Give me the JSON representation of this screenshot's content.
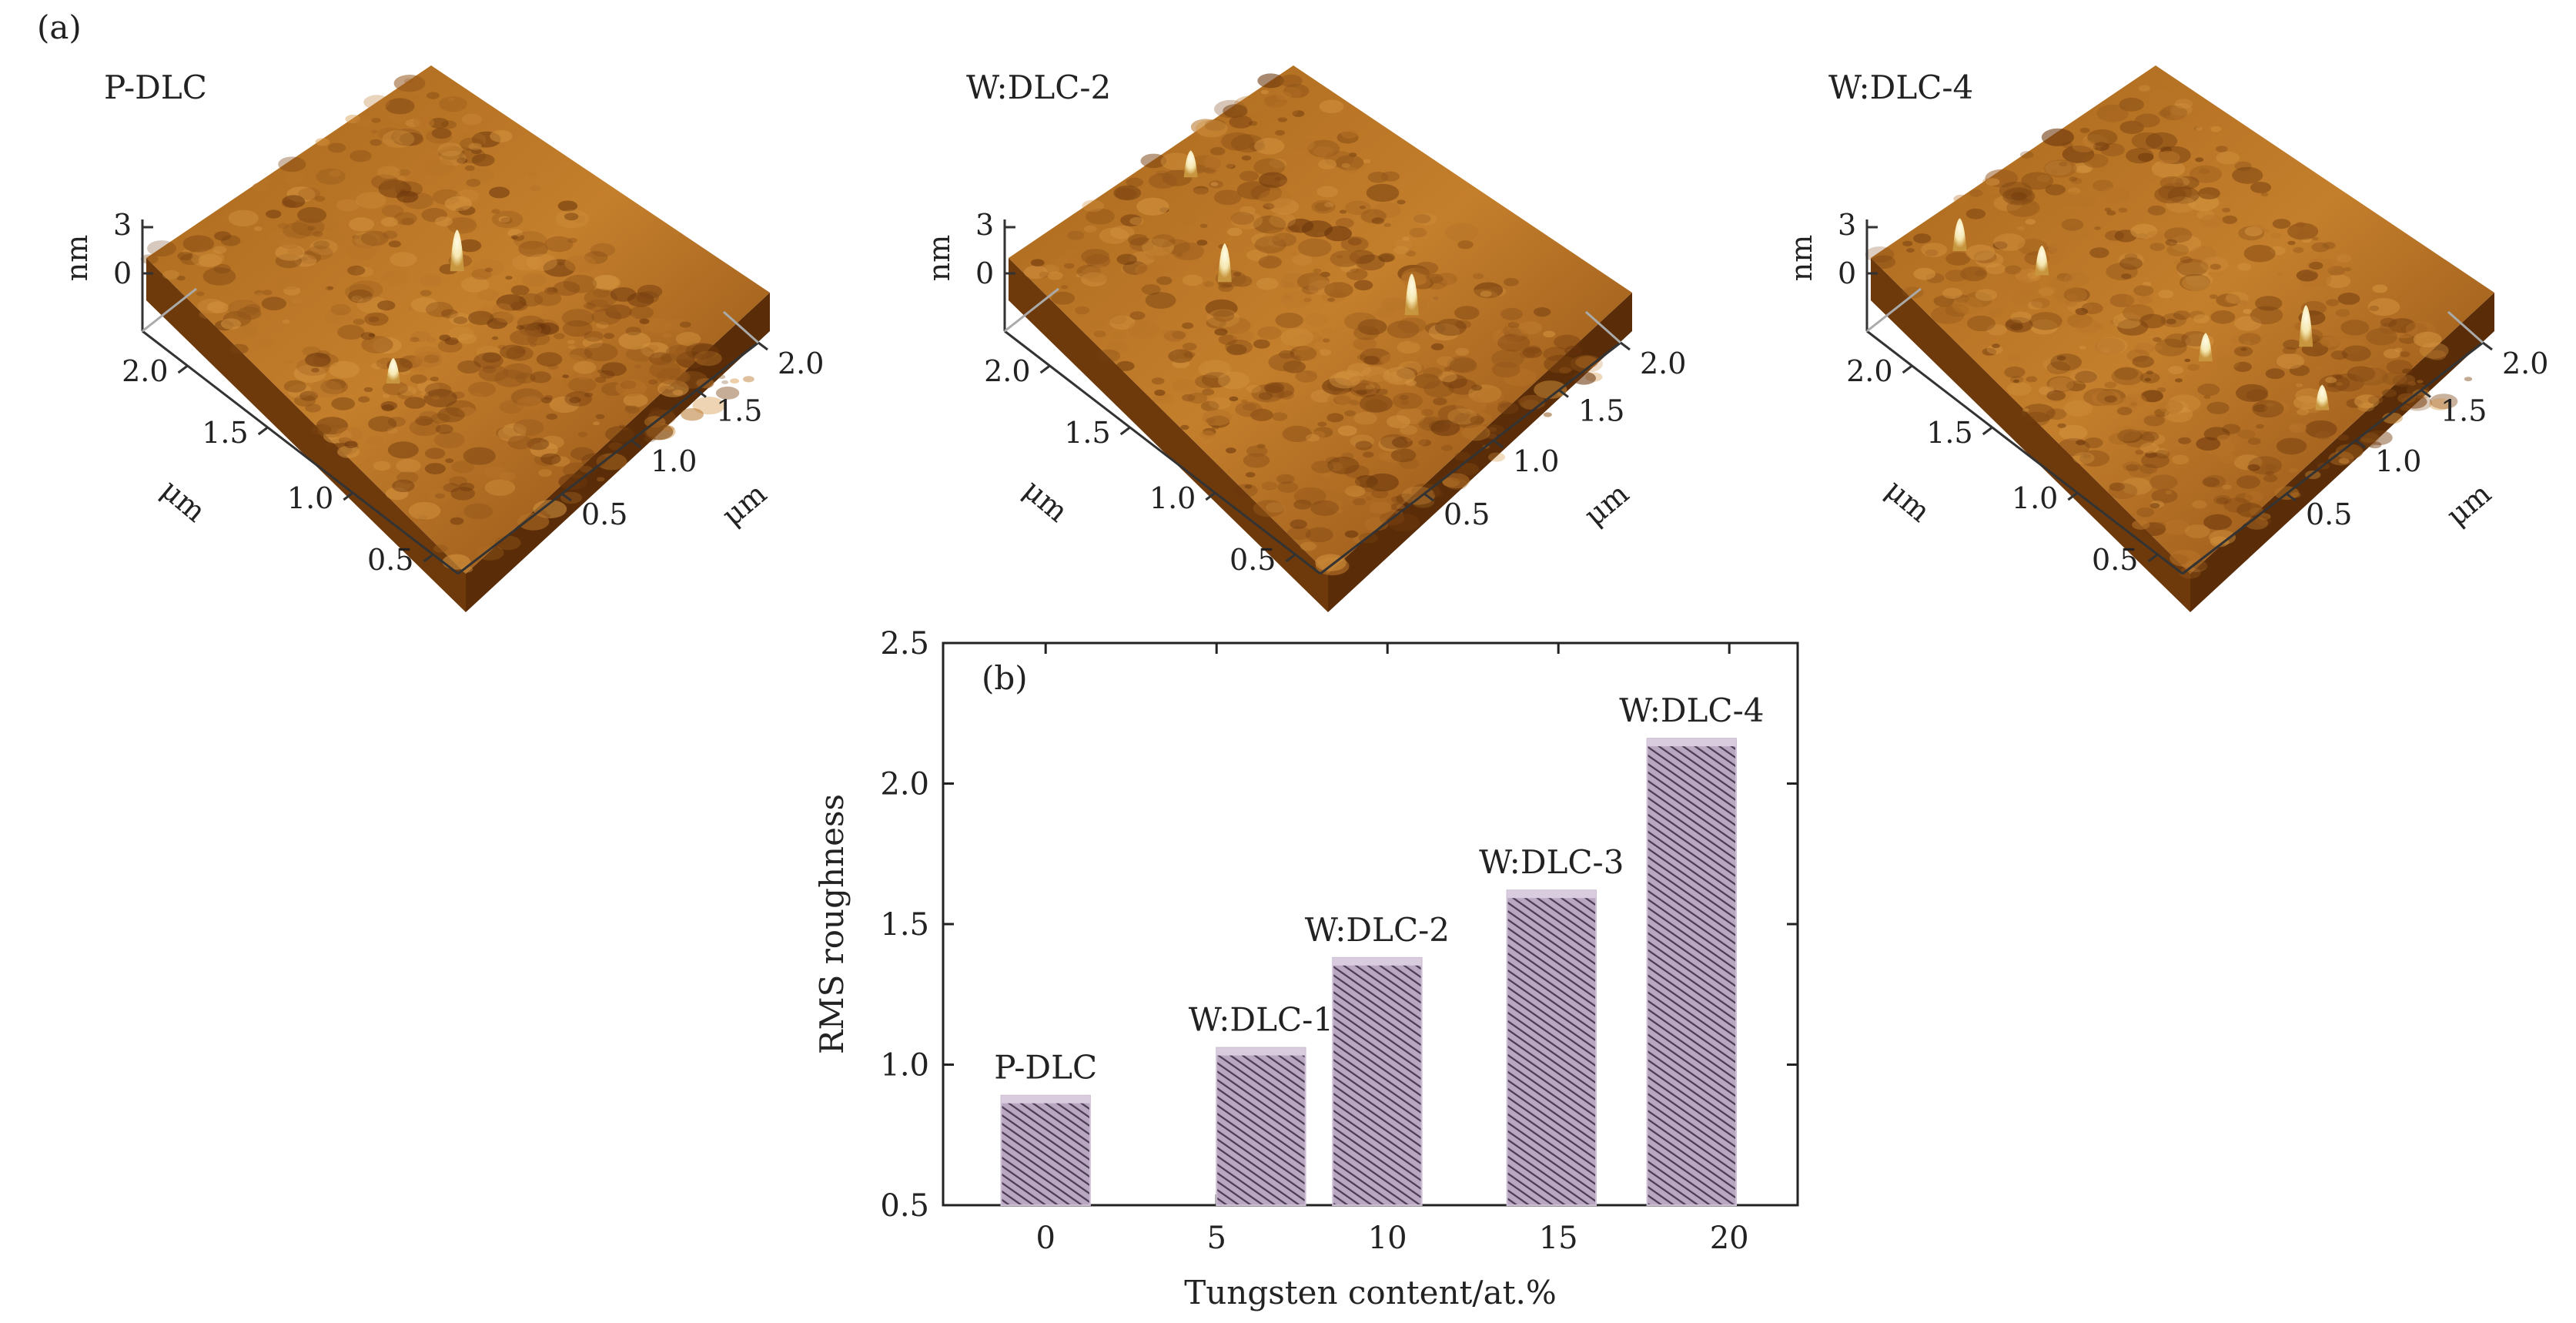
{
  "figure_label_a": "(a)",
  "afm_panels": [
    {
      "title": "P-DLC"
    },
    {
      "title": "W:DLC-2"
    },
    {
      "title": "W:DLC-4"
    }
  ],
  "afm_axes": {
    "z_unit": "nm",
    "z_ticks": [
      "3",
      "0"
    ],
    "x_ticks": [
      "2.0",
      "1.5",
      "1.0",
      "0.5"
    ],
    "y_ticks": [
      "2.0",
      "1.5",
      "1.0",
      "0.5"
    ],
    "x_unit": "μm",
    "y_unit": "μm"
  },
  "colors": {
    "surface_dark": "#6e3a0c",
    "surface_mid": "#a8661c",
    "surface_light": "#d69a3c",
    "peak": "#f5e7b0",
    "bar_fill": "#b9a6c1",
    "bar_hatch": "#4a3b52",
    "axis": "#222222"
  },
  "chart_data": {
    "type": "bar",
    "panel_label": "(b)",
    "xlabel": "Tungsten content/at.%",
    "ylabel": "RMS roughness",
    "xlim": [
      -3,
      22
    ],
    "ylim": [
      0.5,
      2.5
    ],
    "x_ticks": [
      "0",
      "5",
      "10",
      "15",
      "20"
    ],
    "y_ticks": [
      "0.5",
      "1.0",
      "1.5",
      "2.0",
      "2.5"
    ],
    "bars": [
      {
        "name": "P-DLC",
        "x": 0,
        "value": 0.89
      },
      {
        "name": "W:DLC-1",
        "x": 6.3,
        "value": 1.06
      },
      {
        "name": "W:DLC-2",
        "x": 9.7,
        "value": 1.38
      },
      {
        "name": "W:DLC-3",
        "x": 14.8,
        "value": 1.62
      },
      {
        "name": "W:DLC-4",
        "x": 18.9,
        "value": 2.16
      }
    ],
    "bar_width_units": 2.6
  }
}
